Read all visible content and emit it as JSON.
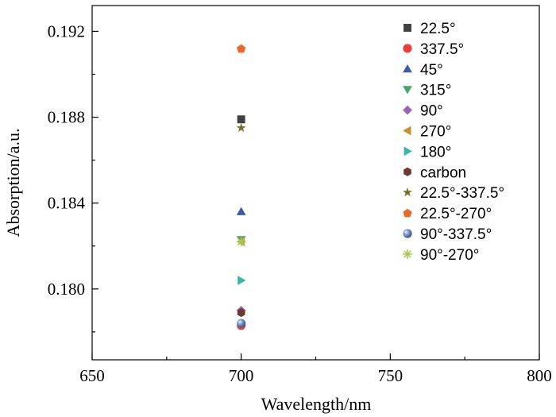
{
  "chart_data": {
    "type": "scatter",
    "xlabel": "Wavelength/nm",
    "ylabel": "Absorption/a.u.",
    "xlim": [
      650,
      800
    ],
    "ylim": [
      0.1767,
      0.1932
    ],
    "x_ticks": [
      650,
      700,
      750,
      800
    ],
    "x_tick_labels": [
      "650",
      "700",
      "750",
      "800"
    ],
    "y_ticks": [
      0.18,
      0.184,
      0.188,
      0.192
    ],
    "y_tick_labels": [
      "0.180",
      "0.184",
      "0.188",
      "0.192"
    ],
    "grid": false,
    "legend_position": "top-right",
    "series": [
      {
        "name": "22.5°",
        "marker": "square",
        "color": "#404040",
        "points": [
          [
            700,
            0.1879
          ]
        ]
      },
      {
        "name": "337.5°",
        "marker": "circle",
        "color": "#e8403c",
        "points": [
          [
            700,
            0.1783
          ]
        ]
      },
      {
        "name": "45°",
        "marker": "triangle-up",
        "color": "#3c5aa8",
        "points": [
          [
            700,
            0.1836
          ]
        ]
      },
      {
        "name": "315°",
        "marker": "triangle-down",
        "color": "#4aa36a",
        "points": [
          [
            700,
            0.1823
          ]
        ]
      },
      {
        "name": "90°",
        "marker": "diamond",
        "color": "#9b65b5",
        "points": [
          [
            700,
            0.179
          ]
        ]
      },
      {
        "name": "270°",
        "marker": "triangle-left",
        "color": "#c8902e",
        "points": [
          [
            700,
            0.1822
          ]
        ]
      },
      {
        "name": "180°",
        "marker": "triangle-right",
        "color": "#3ab3a8",
        "points": [
          [
            700,
            0.1804
          ]
        ]
      },
      {
        "name": "carbon",
        "marker": "hexagon",
        "color": "#6b3a32",
        "points": [
          [
            700,
            0.1789
          ]
        ]
      },
      {
        "name": "22.5°-337.5°",
        "marker": "star",
        "color": "#7a6e28",
        "points": [
          [
            700,
            0.1875
          ]
        ]
      },
      {
        "name": "22.5°-270°",
        "marker": "pentagon",
        "color": "#e86a2a",
        "points": [
          [
            700,
            0.1912
          ]
        ]
      },
      {
        "name": "90°-337.5°",
        "marker": "sphere",
        "color": "#5a7ab0",
        "points": [
          [
            700,
            0.1784
          ]
        ]
      },
      {
        "name": "90°-270°",
        "marker": "asterisk",
        "color": "#a6c85a",
        "points": [
          [
            700,
            0.1822
          ]
        ]
      }
    ]
  }
}
